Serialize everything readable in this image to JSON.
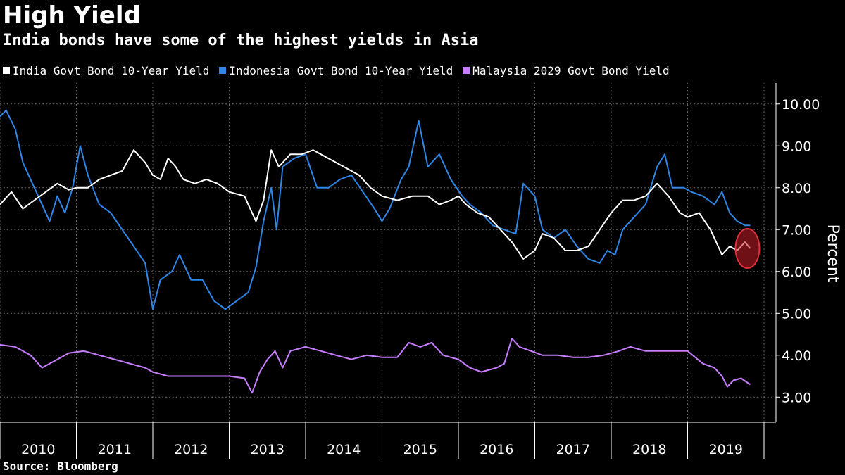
{
  "chart_data": {
    "type": "line",
    "title": "High Yield",
    "subtitle": "India bonds have some of the highest yields in Asia",
    "ylabel": "Percent",
    "source": "Source: Bloomberg",
    "ylim": [
      2.4,
      10.5
    ],
    "yticks": [
      "10.00",
      "9.00",
      "8.00",
      "7.00",
      "6.00",
      "5.00",
      "4.00",
      "3.00"
    ],
    "x_range": [
      2010.0,
      2019.85
    ],
    "x_labels": [
      "2010",
      "2011",
      "2012",
      "2013",
      "2014",
      "2015",
      "2016",
      "2017",
      "2018",
      "2019"
    ],
    "grid": true,
    "legend_position": "top-left",
    "annotation": "red circle highlighting latest India yield",
    "series": [
      {
        "name": "India Govt Bond 10-Year Yield",
        "color": "#ffffff",
        "points": [
          [
            2010.0,
            7.6
          ],
          [
            2010.15,
            7.9
          ],
          [
            2010.3,
            7.5
          ],
          [
            2010.45,
            7.7
          ],
          [
            2010.6,
            7.9
          ],
          [
            2010.75,
            8.1
          ],
          [
            2010.9,
            7.95
          ],
          [
            2011.0,
            8.0
          ],
          [
            2011.15,
            8.0
          ],
          [
            2011.3,
            8.2
          ],
          [
            2011.45,
            8.3
          ],
          [
            2011.6,
            8.4
          ],
          [
            2011.75,
            8.9
          ],
          [
            2011.9,
            8.6
          ],
          [
            2012.0,
            8.3
          ],
          [
            2012.1,
            8.2
          ],
          [
            2012.2,
            8.7
          ],
          [
            2012.3,
            8.5
          ],
          [
            2012.4,
            8.2
          ],
          [
            2012.55,
            8.1
          ],
          [
            2012.7,
            8.2
          ],
          [
            2012.85,
            8.1
          ],
          [
            2013.0,
            7.9
          ],
          [
            2013.2,
            7.8
          ],
          [
            2013.35,
            7.2
          ],
          [
            2013.45,
            7.7
          ],
          [
            2013.55,
            8.9
          ],
          [
            2013.65,
            8.5
          ],
          [
            2013.8,
            8.8
          ],
          [
            2013.95,
            8.8
          ],
          [
            2014.1,
            8.9
          ],
          [
            2014.3,
            8.7
          ],
          [
            2014.5,
            8.5
          ],
          [
            2014.7,
            8.3
          ],
          [
            2014.85,
            8.0
          ],
          [
            2015.0,
            7.8
          ],
          [
            2015.2,
            7.7
          ],
          [
            2015.4,
            7.8
          ],
          [
            2015.6,
            7.8
          ],
          [
            2015.75,
            7.6
          ],
          [
            2015.9,
            7.7
          ],
          [
            2016.0,
            7.8
          ],
          [
            2016.1,
            7.6
          ],
          [
            2016.25,
            7.4
          ],
          [
            2016.4,
            7.3
          ],
          [
            2016.55,
            7.0
          ],
          [
            2016.7,
            6.7
          ],
          [
            2016.85,
            6.3
          ],
          [
            2017.0,
            6.5
          ],
          [
            2017.1,
            6.9
          ],
          [
            2017.25,
            6.8
          ],
          [
            2017.4,
            6.5
          ],
          [
            2017.55,
            6.5
          ],
          [
            2017.7,
            6.6
          ],
          [
            2017.85,
            7.0
          ],
          [
            2018.0,
            7.4
          ],
          [
            2018.15,
            7.7
          ],
          [
            2018.3,
            7.7
          ],
          [
            2018.45,
            7.8
          ],
          [
            2018.6,
            8.1
          ],
          [
            2018.75,
            7.8
          ],
          [
            2018.9,
            7.4
          ],
          [
            2019.0,
            7.3
          ],
          [
            2019.15,
            7.4
          ],
          [
            2019.3,
            7.0
          ],
          [
            2019.45,
            6.4
          ],
          [
            2019.55,
            6.6
          ],
          [
            2019.65,
            6.5
          ],
          [
            2019.75,
            6.7
          ],
          [
            2019.82,
            6.55
          ]
        ]
      },
      {
        "name": "Indonesia Govt Bond 10-Year Yield",
        "color": "#2f86e6",
        "points": [
          [
            2010.0,
            9.7
          ],
          [
            2010.08,
            9.85
          ],
          [
            2010.2,
            9.4
          ],
          [
            2010.3,
            8.6
          ],
          [
            2010.4,
            8.2
          ],
          [
            2010.55,
            7.6
          ],
          [
            2010.65,
            7.2
          ],
          [
            2010.75,
            7.8
          ],
          [
            2010.85,
            7.4
          ],
          [
            2010.95,
            8.0
          ],
          [
            2011.05,
            9.0
          ],
          [
            2011.15,
            8.3
          ],
          [
            2011.3,
            7.6
          ],
          [
            2011.45,
            7.4
          ],
          [
            2011.6,
            7.0
          ],
          [
            2011.75,
            6.6
          ],
          [
            2011.9,
            6.2
          ],
          [
            2012.0,
            5.1
          ],
          [
            2012.1,
            5.8
          ],
          [
            2012.25,
            6.0
          ],
          [
            2012.35,
            6.4
          ],
          [
            2012.5,
            5.8
          ],
          [
            2012.65,
            5.8
          ],
          [
            2012.8,
            5.3
          ],
          [
            2012.95,
            5.1
          ],
          [
            2013.1,
            5.3
          ],
          [
            2013.25,
            5.5
          ],
          [
            2013.35,
            6.1
          ],
          [
            2013.45,
            7.2
          ],
          [
            2013.55,
            8.0
          ],
          [
            2013.62,
            7.0
          ],
          [
            2013.7,
            8.5
          ],
          [
            2013.85,
            8.7
          ],
          [
            2014.0,
            8.8
          ],
          [
            2014.15,
            8.0
          ],
          [
            2014.3,
            8.0
          ],
          [
            2014.45,
            8.2
          ],
          [
            2014.6,
            8.3
          ],
          [
            2014.75,
            7.9
          ],
          [
            2014.9,
            7.5
          ],
          [
            2015.0,
            7.2
          ],
          [
            2015.1,
            7.5
          ],
          [
            2015.25,
            8.2
          ],
          [
            2015.35,
            8.5
          ],
          [
            2015.48,
            9.6
          ],
          [
            2015.6,
            8.5
          ],
          [
            2015.75,
            8.8
          ],
          [
            2015.9,
            8.2
          ],
          [
            2016.05,
            7.8
          ],
          [
            2016.15,
            7.6
          ],
          [
            2016.3,
            7.4
          ],
          [
            2016.45,
            7.1
          ],
          [
            2016.6,
            7.0
          ],
          [
            2016.75,
            6.9
          ],
          [
            2016.85,
            8.1
          ],
          [
            2017.0,
            7.8
          ],
          [
            2017.1,
            7.0
          ],
          [
            2017.25,
            6.8
          ],
          [
            2017.4,
            7.0
          ],
          [
            2017.55,
            6.6
          ],
          [
            2017.7,
            6.3
          ],
          [
            2017.85,
            6.2
          ],
          [
            2017.95,
            6.5
          ],
          [
            2018.05,
            6.4
          ],
          [
            2018.15,
            7.0
          ],
          [
            2018.3,
            7.3
          ],
          [
            2018.45,
            7.6
          ],
          [
            2018.6,
            8.5
          ],
          [
            2018.7,
            8.8
          ],
          [
            2018.8,
            8.0
          ],
          [
            2018.95,
            8.0
          ],
          [
            2019.05,
            7.9
          ],
          [
            2019.2,
            7.8
          ],
          [
            2019.35,
            7.6
          ],
          [
            2019.45,
            7.9
          ],
          [
            2019.55,
            7.4
          ],
          [
            2019.65,
            7.2
          ],
          [
            2019.75,
            7.1
          ],
          [
            2019.82,
            7.1
          ]
        ]
      },
      {
        "name": "Malaysia 2029 Govt Bond Yield",
        "color": "#c77dff",
        "points": [
          [
            2010.0,
            4.25
          ],
          [
            2010.2,
            4.2
          ],
          [
            2010.4,
            4.0
          ],
          [
            2010.55,
            3.7
          ],
          [
            2010.75,
            3.9
          ],
          [
            2010.9,
            4.05
          ],
          [
            2011.1,
            4.1
          ],
          [
            2011.3,
            4.0
          ],
          [
            2011.5,
            3.9
          ],
          [
            2011.7,
            3.8
          ],
          [
            2011.9,
            3.7
          ],
          [
            2012.0,
            3.6
          ],
          [
            2012.2,
            3.5
          ],
          [
            2012.4,
            3.5
          ],
          [
            2012.6,
            3.5
          ],
          [
            2012.8,
            3.5
          ],
          [
            2013.0,
            3.5
          ],
          [
            2013.2,
            3.45
          ],
          [
            2013.3,
            3.1
          ],
          [
            2013.4,
            3.6
          ],
          [
            2013.5,
            3.9
          ],
          [
            2013.6,
            4.1
          ],
          [
            2013.7,
            3.7
          ],
          [
            2013.8,
            4.1
          ],
          [
            2014.0,
            4.2
          ],
          [
            2014.2,
            4.1
          ],
          [
            2014.4,
            4.0
          ],
          [
            2014.6,
            3.9
          ],
          [
            2014.8,
            4.0
          ],
          [
            2015.0,
            3.95
          ],
          [
            2015.2,
            3.95
          ],
          [
            2015.35,
            4.3
          ],
          [
            2015.5,
            4.2
          ],
          [
            2015.65,
            4.3
          ],
          [
            2015.8,
            4.0
          ],
          [
            2016.0,
            3.9
          ],
          [
            2016.15,
            3.7
          ],
          [
            2016.3,
            3.6
          ],
          [
            2016.5,
            3.7
          ],
          [
            2016.6,
            3.8
          ],
          [
            2016.7,
            4.4
          ],
          [
            2016.8,
            4.2
          ],
          [
            2016.95,
            4.1
          ],
          [
            2017.1,
            4.0
          ],
          [
            2017.3,
            4.0
          ],
          [
            2017.5,
            3.95
          ],
          [
            2017.7,
            3.95
          ],
          [
            2017.9,
            4.0
          ],
          [
            2018.1,
            4.1
          ],
          [
            2018.25,
            4.2
          ],
          [
            2018.45,
            4.1
          ],
          [
            2018.65,
            4.1
          ],
          [
            2018.85,
            4.1
          ],
          [
            2019.0,
            4.1
          ],
          [
            2019.2,
            3.8
          ],
          [
            2019.35,
            3.7
          ],
          [
            2019.45,
            3.5
          ],
          [
            2019.52,
            3.25
          ],
          [
            2019.6,
            3.4
          ],
          [
            2019.7,
            3.45
          ],
          [
            2019.78,
            3.35
          ],
          [
            2019.82,
            3.3
          ]
        ]
      }
    ]
  }
}
